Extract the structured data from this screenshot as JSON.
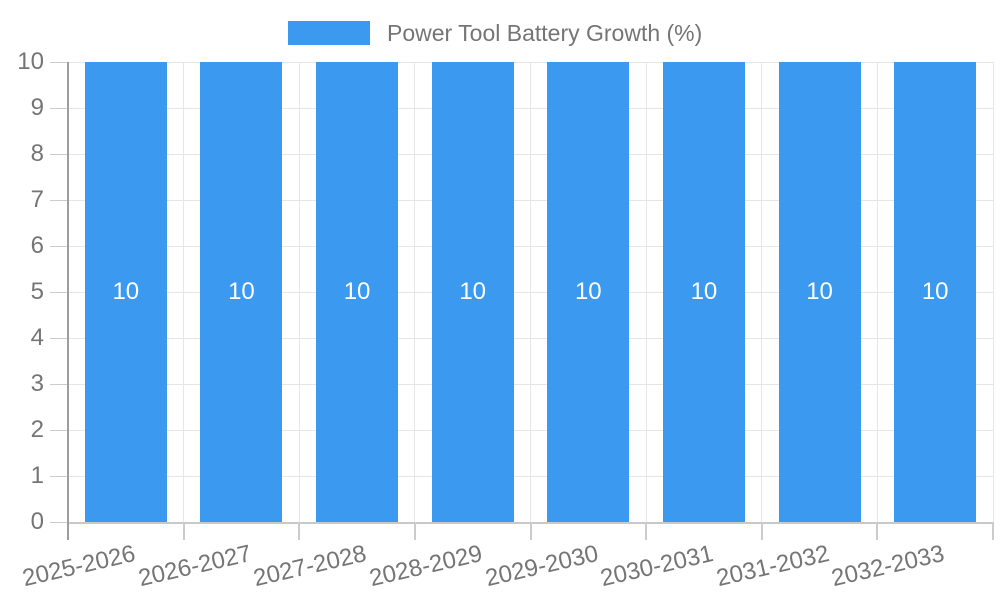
{
  "chart_data": {
    "type": "bar",
    "title": "Power Tool Battery Growth (%)",
    "legend": {
      "position": "top",
      "label": "Power Tool Battery Growth (%)"
    },
    "categories": [
      "2025-2026",
      "2026-2027",
      "2027-2028",
      "2028-2029",
      "2029-2030",
      "2030-2031",
      "2031-2032",
      "2032-2033"
    ],
    "values": [
      10,
      10,
      10,
      10,
      10,
      10,
      10,
      10
    ],
    "xlabel": "",
    "ylabel": "",
    "ylim": [
      0,
      10
    ],
    "yticks": [
      0,
      1,
      2,
      3,
      4,
      5,
      6,
      7,
      8,
      9,
      10
    ],
    "grid": true,
    "colors": {
      "bar": "#3B99F0",
      "bar_label_text": "#FFFFFF",
      "axis_text": "#757575",
      "grid_line": "#E6E6E6",
      "axis_line": "#9E9E9E",
      "tick_line": "#CCCCCC",
      "x_axis_line": "#C9C9C9",
      "background": "#FFFFFF"
    }
  }
}
